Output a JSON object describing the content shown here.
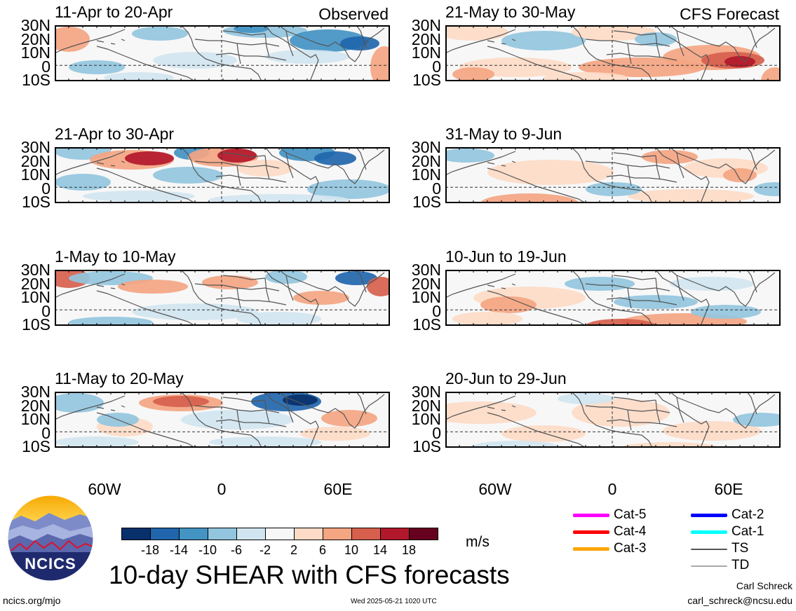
{
  "panels": [
    {
      "title": "11-Apr to 20-Apr",
      "tag": "Observed",
      "col": 0,
      "row": 0,
      "pattern": "obs1"
    },
    {
      "title": "21-Apr to 30-Apr",
      "tag": "",
      "col": 0,
      "row": 1,
      "pattern": "obs2"
    },
    {
      "title": "1-May to 10-May",
      "tag": "",
      "col": 0,
      "row": 2,
      "pattern": "obs3"
    },
    {
      "title": "11-May to 20-May",
      "tag": "",
      "col": 0,
      "row": 3,
      "pattern": "obs4"
    },
    {
      "title": "21-May to 30-May",
      "tag": "CFS Forecast",
      "col": 1,
      "row": 0,
      "pattern": "fc1"
    },
    {
      "title": "31-May to 9-Jun",
      "tag": "",
      "col": 1,
      "row": 1,
      "pattern": "fc2"
    },
    {
      "title": "10-Jun to 19-Jun",
      "tag": "",
      "col": 1,
      "row": 2,
      "pattern": "fc3"
    },
    {
      "title": "20-Jun to 29-Jun",
      "tag": "",
      "col": 1,
      "row": 3,
      "pattern": "fc4"
    }
  ],
  "y_axis_labels": [
    "30N",
    "20N",
    "10N",
    "0",
    "10S"
  ],
  "x_axis_labels": [
    "60W",
    "0",
    "60E"
  ],
  "colorbar": {
    "ticks": [
      "-18",
      "-14",
      "-10",
      "-6",
      "-2",
      "2",
      "6",
      "10",
      "14",
      "18"
    ],
    "colors": [
      "#08306b",
      "#2166ac",
      "#4393c3",
      "#92c5de",
      "#d1e5f0",
      "#f7f7f7",
      "#fddbc7",
      "#f4a582",
      "#d6604d",
      "#b2182b",
      "#67001f"
    ],
    "units": "m/s"
  },
  "legend": [
    {
      "label": "Cat-5",
      "color": "#ff00ff",
      "thick": true
    },
    {
      "label": "Cat-4",
      "color": "#ff0000",
      "thick": true
    },
    {
      "label": "Cat-3",
      "color": "#ffa500",
      "thick": true
    },
    {
      "label": "Cat-2",
      "color": "#0000ff",
      "thick": true
    },
    {
      "label": "Cat-1",
      "color": "#00ffff",
      "thick": true
    },
    {
      "label": "TS",
      "color": "#555555",
      "thick": false
    },
    {
      "label": "TD",
      "color": "#aaaaaa",
      "thick": false
    }
  ],
  "main_title": "10-day SHEAR with CFS forecasts",
  "logo_text": "NCICS",
  "footer_left": "ncics.org/mjo",
  "footer_center": "Wed 2025-05-21 1020 UTC",
  "author_name": "Carl Schreck",
  "author_email": "carl_schreck@ncsu.edu"
}
